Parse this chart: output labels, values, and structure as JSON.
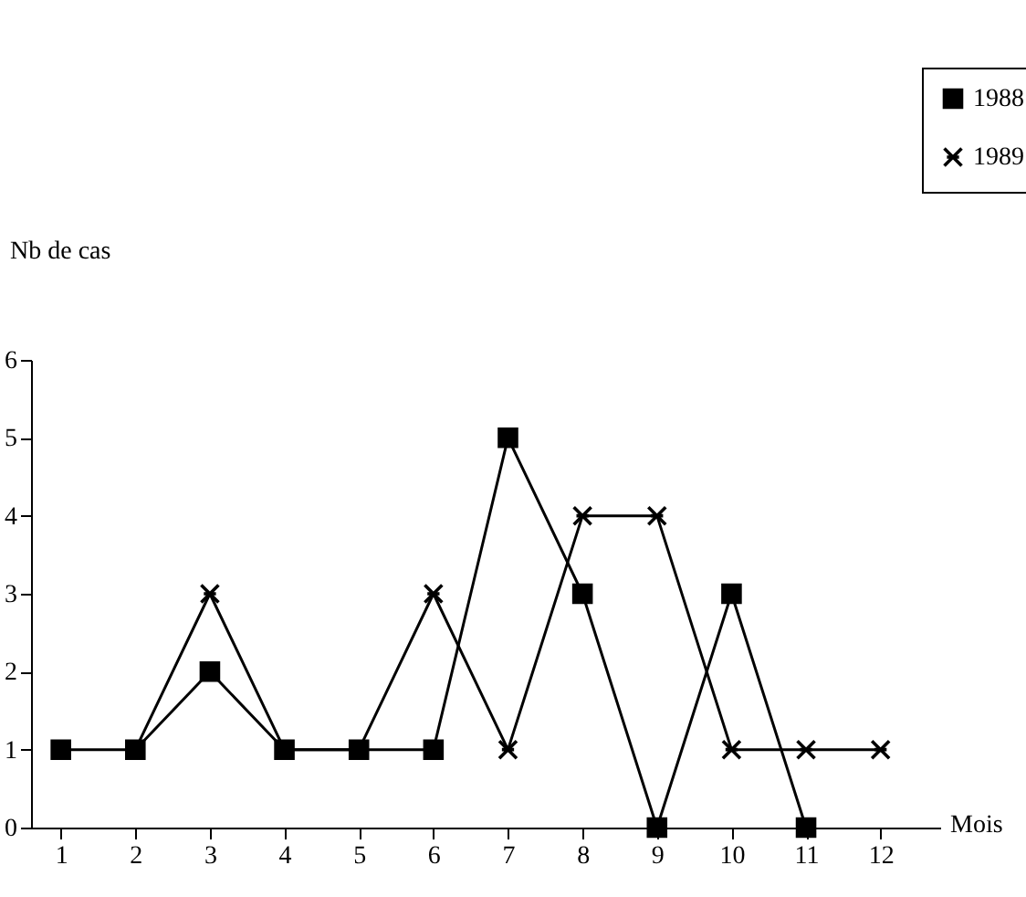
{
  "chart_data": {
    "type": "line",
    "xlabel": "Mois",
    "ylabel": "Nb de cas",
    "x": [
      1,
      2,
      3,
      4,
      5,
      6,
      7,
      8,
      9,
      10,
      11,
      12
    ],
    "xlim": [
      0.6,
      12.8
    ],
    "xticks": [
      1,
      2,
      3,
      4,
      5,
      6,
      7,
      8,
      9,
      10,
      11,
      12
    ],
    "ylim": [
      0,
      6
    ],
    "yticks": [
      0,
      1,
      2,
      3,
      4,
      5,
      6
    ],
    "grid": false,
    "legend": "top right",
    "series": [
      {
        "name": "1988",
        "color": "#000000",
        "marker": "square",
        "values": [
          1,
          1,
          2,
          1,
          1,
          1,
          5,
          3,
          0,
          3,
          0,
          null
        ]
      },
      {
        "name": "1989",
        "color": "#000000",
        "marker": "cross",
        "values": [
          null,
          1,
          3,
          1,
          1,
          3,
          1,
          4,
          4,
          1,
          1,
          1
        ]
      }
    ]
  }
}
